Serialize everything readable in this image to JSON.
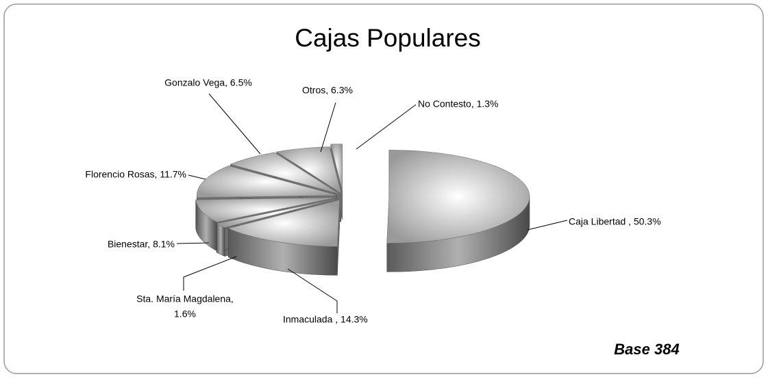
{
  "chart_data": {
    "type": "pie3d",
    "title": "Cajas Populares",
    "values": [
      50.3,
      14.3,
      1.6,
      8.1,
      11.7,
      6.5,
      6.3,
      1.3
    ],
    "value_labels": [
      [
        "Caja Libertad , 50.3%"
      ],
      [
        "Inmaculada , 14.3%"
      ],
      [
        "Sta. María Magdalena,",
        "1.6%"
      ],
      [
        "Bienestar, 8.1%"
      ],
      [
        "Florencio Rosas, 11.7%"
      ],
      [
        "Gonzalo Vega, 6.5%"
      ],
      [
        "Otros, 6.3%"
      ],
      [
        "No Contesto, 1.3%"
      ]
    ],
    "color": "#c8c8c8",
    "annotation": "Base 384"
  }
}
